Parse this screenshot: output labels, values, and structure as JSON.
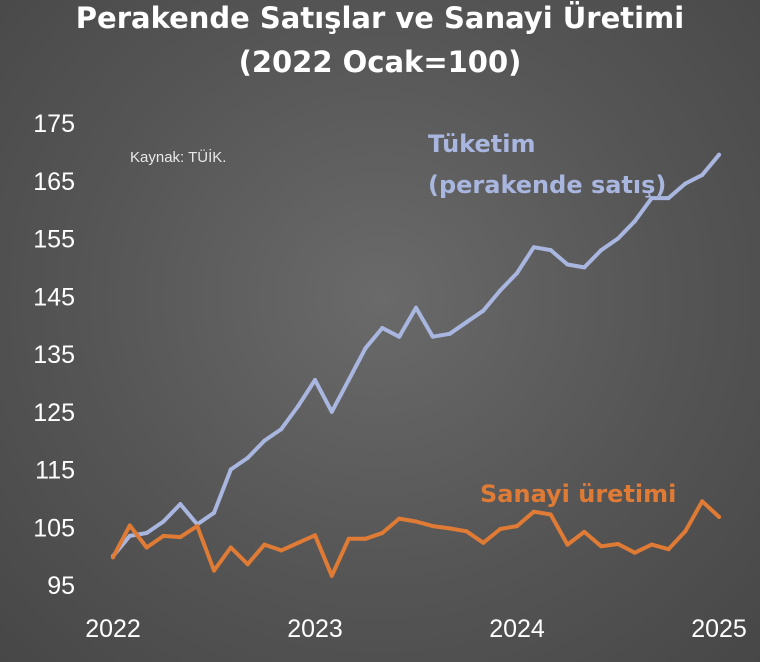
{
  "chart_data": {
    "type": "line",
    "title": "Perakende Satışlar ve Sanayi Üretimi",
    "subtitle": "(2022 Ocak=100)",
    "annotation": "Kaynak: TÜİK.",
    "xlabel": "",
    "ylabel": "",
    "ylim": [
      95,
      175
    ],
    "xlim": [
      2022,
      2025
    ],
    "y_ticks": [
      "175",
      "165",
      "155",
      "145",
      "135",
      "125",
      "115",
      "105",
      "95"
    ],
    "x_ticks": [
      "2022",
      "2023",
      "2024",
      "2025"
    ],
    "grid": false,
    "legend": "inline labels",
    "x": [
      "2022-01",
      "2022-02",
      "2022-03",
      "2022-04",
      "2022-05",
      "2022-06",
      "2022-07",
      "2022-08",
      "2022-09",
      "2022-10",
      "2022-11",
      "2022-12",
      "2023-01",
      "2023-02",
      "2023-03",
      "2023-04",
      "2023-05",
      "2023-06",
      "2023-07",
      "2023-08",
      "2023-09",
      "2023-10",
      "2023-11",
      "2023-12",
      "2024-01",
      "2024-02",
      "2024-03",
      "2024-04",
      "2024-05",
      "2024-06",
      "2024-07",
      "2024-08",
      "2024-09",
      "2024-10",
      "2024-11",
      "2024-12",
      "2025-01"
    ],
    "series": [
      {
        "name": "Tüketim",
        "name_line2": "(perakende satış)",
        "color": "#a9b7e0",
        "values": [
          100,
          103.5,
          104,
          106,
          109,
          105.5,
          107.5,
          115,
          117,
          120,
          122,
          126,
          130.5,
          125,
          130.5,
          136,
          139.5,
          138,
          143,
          138,
          138.5,
          140.5,
          142.5,
          146,
          149,
          153.5,
          153,
          150.5,
          150,
          153,
          155,
          158,
          162,
          162,
          164.5,
          166,
          169.5
        ]
      },
      {
        "name": "Sanayi üretimi",
        "color": "#e07b36",
        "values": [
          99.8,
          105.3,
          101.5,
          103.5,
          103.3,
          105.2,
          97.5,
          101.5,
          98.6,
          102,
          101,
          102.3,
          103.6,
          96.6,
          103,
          103,
          104,
          106.5,
          106,
          105.2,
          104.8,
          104.3,
          102.3,
          104.7,
          105.2,
          107.7,
          107.2,
          102,
          104.2,
          101.7,
          102.1,
          100.6,
          102,
          101.2,
          104.3,
          109.5,
          106.8
        ]
      }
    ]
  }
}
